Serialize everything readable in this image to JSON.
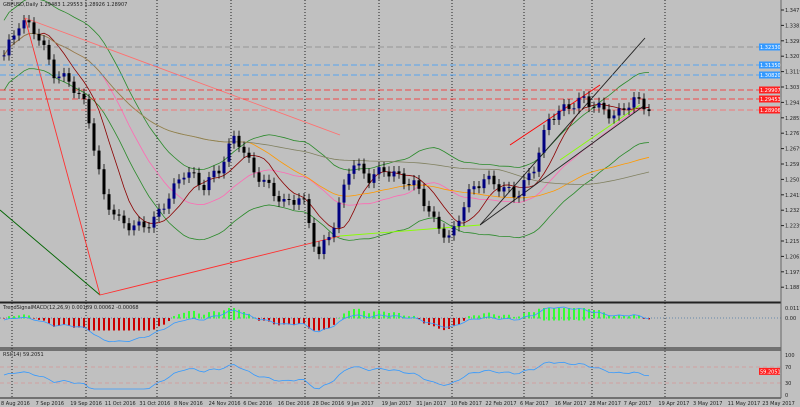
{
  "window": {
    "title": "GBPUSD,Daily  1.29483 1.29553 1.28926 1.28907"
  },
  "colors": {
    "background": "#c0c0c0",
    "bull_candle": "#000080",
    "bear_candle": "#000000",
    "resistance": "#ff2020",
    "support_blue": "#3399ff",
    "macd_up": "#33ff33",
    "macd_down": "#cc0000",
    "rsi_line": "#3399ff"
  },
  "price_axis": {
    "labels": [
      "1.34715",
      "1.33835",
      "1.32955",
      "1.32075",
      "1.31195",
      "1.30315",
      "1.29435",
      "1.28555",
      "1.27675",
      "1.26795",
      "1.25915",
      "1.25035",
      "1.24155",
      "1.23275",
      "1.22395",
      "1.21515",
      "1.20635",
      "1.19755",
      "1.18875"
    ],
    "tags": [
      {
        "text": "1.32330",
        "color": "#3399ff"
      },
      {
        "text": "1.31350",
        "color": "#3399ff"
      },
      {
        "text": "1.30820",
        "color": "#3399ff"
      },
      {
        "text": "1.29907",
        "color": "#ff2020"
      },
      {
        "text": "1.29453",
        "color": "#ff2020"
      },
      {
        "text": "1.28906",
        "color": "#ff2020"
      }
    ]
  },
  "macd_pane": {
    "label": "TrendSignalMACD(12,26,9) 0.00189 0.00062 -0.00068",
    "axis_top": "0.01178",
    "axis_zero": "0.00"
  },
  "rsi_pane": {
    "label": "RSI(14) 59.2051",
    "axis": [
      "100",
      "70",
      "30",
      "0"
    ],
    "current": "59.2051"
  },
  "time_axis": {
    "labels": [
      "8 Aug 2016",
      "7 Sep 2016",
      "19 Sep 2016",
      "11 Oct 2016",
      "31 Oct 2016",
      "8 Nov 2016",
      "24 Nov 2016",
      "6 Dec 2016",
      "16 Dec 2016",
      "28 Dec 2016",
      "9 Jan 2017",
      "19 Jan 2017",
      "31 Jan 2017",
      "10 Feb 2017",
      "22 Feb 2017",
      "6 Mar 2017",
      "16 Mar 2017",
      "28 Mar 2017",
      "7 Apr 2017",
      "19 Apr 2017",
      "3 May 2017",
      "11 May 2017",
      "23 May 2017"
    ]
  },
  "chart_data": {
    "type": "candlestick",
    "symbol": "GBPUSD",
    "timeframe": "Daily",
    "ylim": [
      1.184,
      1.347
    ],
    "close_path": [
      1.32,
      1.34,
      1.333,
      1.31,
      1.305,
      1.29,
      1.24,
      1.225,
      1.222,
      1.225,
      1.24,
      1.255,
      1.245,
      1.255,
      1.275,
      1.255,
      1.245,
      1.235,
      1.24,
      1.205,
      1.225,
      1.26,
      1.25,
      1.255,
      1.25,
      1.245,
      1.225,
      1.215,
      1.24,
      1.25,
      1.245,
      1.24,
      1.255,
      1.285,
      1.29,
      1.295,
      1.29,
      1.285,
      1.295,
      1.29
    ],
    "rsi_ylim": [
      0,
      100
    ],
    "rsi_levels": [
      70,
      30
    ]
  }
}
